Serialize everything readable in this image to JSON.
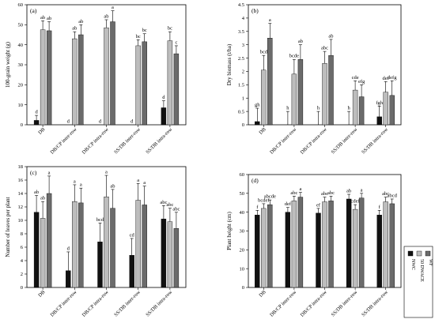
{
  "colors": {
    "NWC": "#111111",
    "50 DWACE": "#bdbdbd",
    "WF": "#6b6b6b",
    "edge": "#000000"
  },
  "legend": {
    "position": "bottom-right",
    "entries": [
      "NWC",
      "50 DWACE",
      "WF"
    ]
  },
  "chart_data": [
    {
      "type": "bar",
      "panel": "(a)",
      "ylabel": "100-grain weight (g)",
      "ylim": [
        0,
        60
      ],
      "yticks": [
        0,
        10,
        20,
        30,
        40,
        50,
        60
      ],
      "categories": [
        "DB",
        "DB/CP inter-row",
        "DB/CP intra-row",
        "SS/DB inter-row",
        "SS/DB intra-row"
      ],
      "series": [
        {
          "name": "NWC",
          "values": [
            2.2,
            0,
            0,
            0,
            8.5
          ],
          "errors": [
            2.5,
            0,
            0,
            0,
            3.5
          ]
        },
        {
          "name": "50 DWACE",
          "values": [
            47.5,
            43,
            48.5,
            39.5,
            42
          ],
          "errors": [
            4.5,
            3.5,
            4,
            3,
            4.5
          ]
        },
        {
          "name": "WF",
          "values": [
            47,
            45,
            51.5,
            41.5,
            35.5
          ],
          "errors": [
            4.5,
            5,
            5.5,
            4,
            4
          ]
        }
      ],
      "letters": [
        [
          "d",
          "ab",
          "ab"
        ],
        [
          "d",
          "ab",
          "ab"
        ],
        [
          "d",
          "ab",
          "a"
        ],
        [
          "d",
          "bc",
          "bc"
        ],
        [
          "d",
          "bc",
          "c"
        ]
      ]
    },
    {
      "type": "bar",
      "panel": "(b)",
      "ylabel": "Dry biomass (t/ha)",
      "ylim": [
        0,
        4.5
      ],
      "yticks": [
        0,
        0.5,
        1,
        1.5,
        2,
        2.5,
        3,
        3.5,
        4,
        4.5
      ],
      "categories": [
        "DB",
        "DB/CP inter-row",
        "DB/CP intra-row",
        "SS/DB inter-row",
        "SS/DB intra-row"
      ],
      "series": [
        {
          "name": "NWC",
          "values": [
            0.12,
            0,
            0,
            0,
            0.3
          ],
          "errors": [
            0.5,
            0.5,
            0.5,
            0.5,
            0.4
          ]
        },
        {
          "name": "50 DWACE",
          "values": [
            2.05,
            1.9,
            2.3,
            1.3,
            1.22
          ],
          "errors": [
            0.55,
            0.55,
            0.45,
            0.35,
            0.4
          ]
        },
        {
          "name": "WF",
          "values": [
            3.25,
            2.45,
            2.6,
            1.05,
            1.1
          ],
          "errors": [
            0.55,
            0.55,
            0.6,
            0.45,
            0.55
          ]
        }
      ],
      "letters": [
        [
          "gh",
          "bcd",
          "a"
        ],
        [
          "h",
          "bcde",
          "ab"
        ],
        [
          "h",
          "abc",
          "ab"
        ],
        [
          "h",
          "cde",
          "efg"
        ],
        [
          "fgh",
          "def",
          "defg"
        ]
      ]
    },
    {
      "type": "bar",
      "panel": "(c)",
      "ylabel": "Number of leaves per plant",
      "ylim": [
        0,
        18
      ],
      "yticks": [
        0,
        2,
        4,
        6,
        8,
        10,
        12,
        14,
        16,
        18
      ],
      "categories": [
        "DB",
        "DB/CP inter-row",
        "DB/CP intra-row",
        "SS/DB inter-row",
        "SS/DB intra-row"
      ],
      "series": [
        {
          "name": "NWC",
          "values": [
            11.2,
            2.5,
            6.8,
            4.8,
            10.2
          ],
          "errors": [
            2.5,
            2.8,
            2.8,
            2.5,
            2
          ]
        },
        {
          "name": "50 DWACE",
          "values": [
            10.3,
            12.8,
            13.5,
            13,
            9.8
          ],
          "errors": [
            2.5,
            2.5,
            3.2,
            2.5,
            2
          ]
        },
        {
          "name": "WF",
          "values": [
            14,
            12.6,
            11.8,
            12.3,
            8.8
          ],
          "errors": [
            2.6,
            2.2,
            2.8,
            2.8,
            2.4
          ]
        }
      ],
      "letters": [
        [
          "ab",
          "ab",
          "a"
        ],
        [
          "d",
          "a",
          "a"
        ],
        [
          "bcd",
          "a",
          "ab"
        ],
        [
          "cd",
          "a",
          "a"
        ],
        [
          "abc",
          "abc",
          "abc"
        ]
      ]
    },
    {
      "type": "bar",
      "panel": "(d)",
      "ylabel": "Plant height (cm)",
      "ylim": [
        0,
        60
      ],
      "yticks": [
        0,
        10,
        20,
        30,
        40,
        50,
        60
      ],
      "categories": [
        "DB",
        "DB/CP inter-row",
        "DB/CP intra-row",
        "SS/DB inter-row",
        "SS/DB intra-row"
      ],
      "series": [
        {
          "name": "NWC",
          "values": [
            38.5,
            40,
            39.5,
            47,
            38.5
          ],
          "errors": [
            2.5,
            2.5,
            2.5,
            2.5,
            2.5
          ]
        },
        {
          "name": "50 DWACE",
          "values": [
            42,
            46,
            45.5,
            41.5,
            45.5
          ],
          "errors": [
            2.5,
            2.5,
            2.5,
            2.5,
            2.5
          ]
        },
        {
          "name": "WF",
          "values": [
            44,
            48,
            46,
            47.5,
            44.5
          ],
          "errors": [
            2.5,
            2.5,
            2.5,
            2.5,
            2.5
          ]
        }
      ],
      "letters": [
        [
          "f",
          "bcdef",
          "abcde"
        ],
        [
          "def",
          "abc",
          "a"
        ],
        [
          "ef",
          "abc",
          "abc"
        ],
        [
          "ab",
          "cdef",
          "a"
        ],
        [
          "f",
          "abc",
          "abcd"
        ]
      ]
    }
  ]
}
